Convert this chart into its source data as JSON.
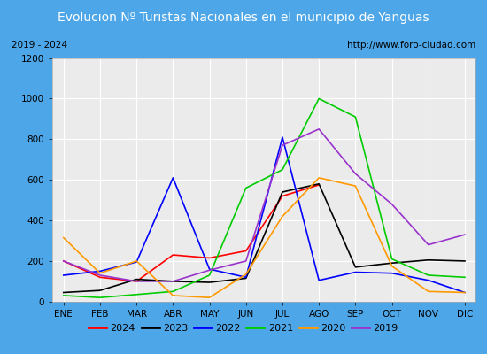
{
  "title": "Evolucion Nº Turistas Nacionales en el municipio de Yanguas",
  "subtitle_left": "2019 - 2024",
  "subtitle_right": "http://www.foro-ciudad.com",
  "months": [
    "ENE",
    "FEB",
    "MAR",
    "ABR",
    "MAY",
    "JUN",
    "JUL",
    "AGO",
    "SEP",
    "OCT",
    "NOV",
    "DIC"
  ],
  "ylim": [
    0,
    1200
  ],
  "yticks": [
    0,
    200,
    400,
    600,
    800,
    1000,
    1200
  ],
  "series": {
    "2024": {
      "color": "#ff0000",
      "values": [
        200,
        120,
        100,
        230,
        215,
        250,
        520,
        575,
        null,
        null,
        null,
        null
      ]
    },
    "2023": {
      "color": "#000000",
      "values": [
        45,
        55,
        110,
        100,
        95,
        115,
        540,
        580,
        170,
        190,
        205,
        200
      ]
    },
    "2022": {
      "color": "#0000ff",
      "values": [
        130,
        150,
        195,
        610,
        160,
        120,
        810,
        105,
        145,
        140,
        105,
        45
      ]
    },
    "2021": {
      "color": "#00cc00",
      "values": [
        30,
        20,
        35,
        50,
        130,
        560,
        650,
        1000,
        910,
        210,
        130,
        120
      ]
    },
    "2020": {
      "color": "#ff9900",
      "values": [
        315,
        140,
        200,
        30,
        20,
        135,
        420,
        610,
        570,
        175,
        50,
        45
      ]
    },
    "2019": {
      "color": "#9933cc",
      "values": [
        200,
        130,
        100,
        100,
        155,
        200,
        770,
        850,
        630,
        480,
        280,
        330
      ]
    }
  },
  "title_bg_color": "#4da6e8",
  "title_text_color": "#ffffff",
  "plot_bg_color": "#ebebeb",
  "grid_color": "#ffffff",
  "outer_bg_color": "#4da6e8",
  "subtitle_bg_color": "#e0e0e0",
  "legend_bg_color": "#f5f5f5",
  "subtitle_fontsize": 7.5,
  "title_fontsize": 10,
  "tick_fontsize": 7.5,
  "legend_fontsize": 8,
  "legend_order": [
    "2024",
    "2023",
    "2022",
    "2021",
    "2020",
    "2019"
  ]
}
